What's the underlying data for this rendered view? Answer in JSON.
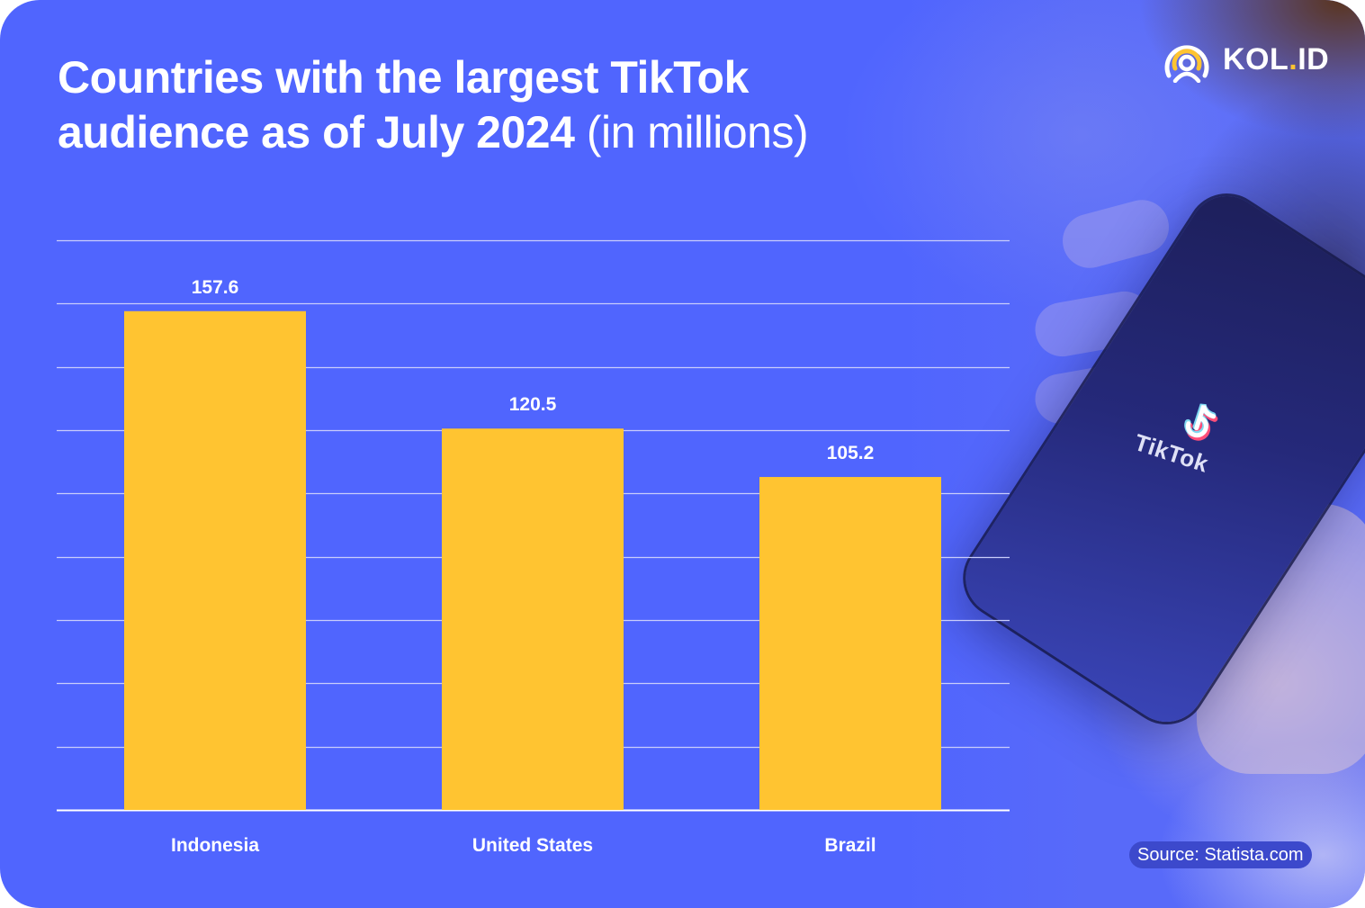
{
  "brand": {
    "logo_icon": "person-broadcast-icon",
    "name_prefix": "KOL",
    "name_dot": ".",
    "name_suffix": "ID",
    "accent_color": "#fec431"
  },
  "header": {
    "title_bold_line1": "Countries with the largest TikTok",
    "title_bold_line2": "audience as of July 2024",
    "title_light": "(in millions)"
  },
  "phone_screen": {
    "app_name": "TikTok"
  },
  "footer": {
    "source": "Source: Statista.com"
  },
  "colors": {
    "background": "#5065fe",
    "bar": "#ffc431",
    "gridline": "#c9cdfb",
    "text": "#ffffff"
  },
  "chart_data": {
    "type": "bar",
    "title": "Countries with the largest TikTok audience as of July 2024 (in millions)",
    "xlabel": "",
    "ylabel": "",
    "categories": [
      "Indonesia",
      "United States",
      "Brazil"
    ],
    "values": [
      157.6,
      120.5,
      105.2
    ],
    "value_labels": [
      "157.6",
      "120.5",
      "105.2"
    ],
    "ylim": [
      0,
      180
    ],
    "ytick_step": 20,
    "y_tick_labels_visible": false,
    "grid": true,
    "legend": "none"
  }
}
